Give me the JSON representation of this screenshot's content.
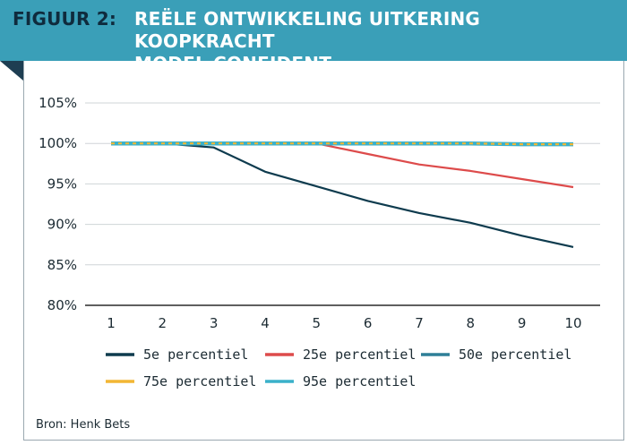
{
  "header": {
    "label": "FIGUUR 2:",
    "title_lines": [
      "REËLE ONTWIKKELING UITKERING KOOPKRACHT",
      "MODEL CONFIDENT"
    ],
    "banner_color": "#3a9fb8",
    "label_color": "#0f2b3d"
  },
  "source": "Bron: Henk Bets",
  "chart_data": {
    "type": "line",
    "x": [
      1,
      2,
      3,
      4,
      5,
      6,
      7,
      8,
      9,
      10
    ],
    "x_tick_labels": [
      "1",
      "2",
      "3",
      "4",
      "5",
      "6",
      "7",
      "8",
      "9",
      "10"
    ],
    "ylim": [
      80,
      105
    ],
    "y_ticks": [
      80,
      85,
      90,
      95,
      100,
      105
    ],
    "y_tick_labels": [
      "80%",
      "85%",
      "90%",
      "95%",
      "100%",
      "105%"
    ],
    "grid": "horizontal",
    "legend_position": "bottom",
    "series": [
      {
        "name": "5e percentiel",
        "color": "#0e3b4e",
        "dashed": false,
        "values": [
          100,
          100,
          99.5,
          96.5,
          94.7,
          92.9,
          91.4,
          90.2,
          88.6,
          87.2
        ]
      },
      {
        "name": "25e percentiel",
        "color": "#dd4b4b",
        "dashed": false,
        "values": [
          100,
          100,
          100,
          100,
          100,
          98.7,
          97.4,
          96.6,
          95.6,
          94.6
        ]
      },
      {
        "name": "50e percentiel",
        "color": "#2e7f97",
        "dashed": false,
        "values": [
          100,
          100,
          100,
          100,
          100,
          100,
          100,
          99.9,
          99.9,
          99.8
        ]
      },
      {
        "name": "75e percentiel",
        "color": "#f2b634",
        "dashed": false,
        "values": [
          100,
          100,
          100,
          100,
          100,
          100,
          100,
          100,
          99.9,
          99.9
        ]
      },
      {
        "name": "95e percentiel",
        "color": "#3ab1ca",
        "dashed": false,
        "values": [
          100,
          100,
          100,
          100,
          100,
          100,
          100,
          100,
          99.9,
          99.9
        ]
      }
    ]
  }
}
